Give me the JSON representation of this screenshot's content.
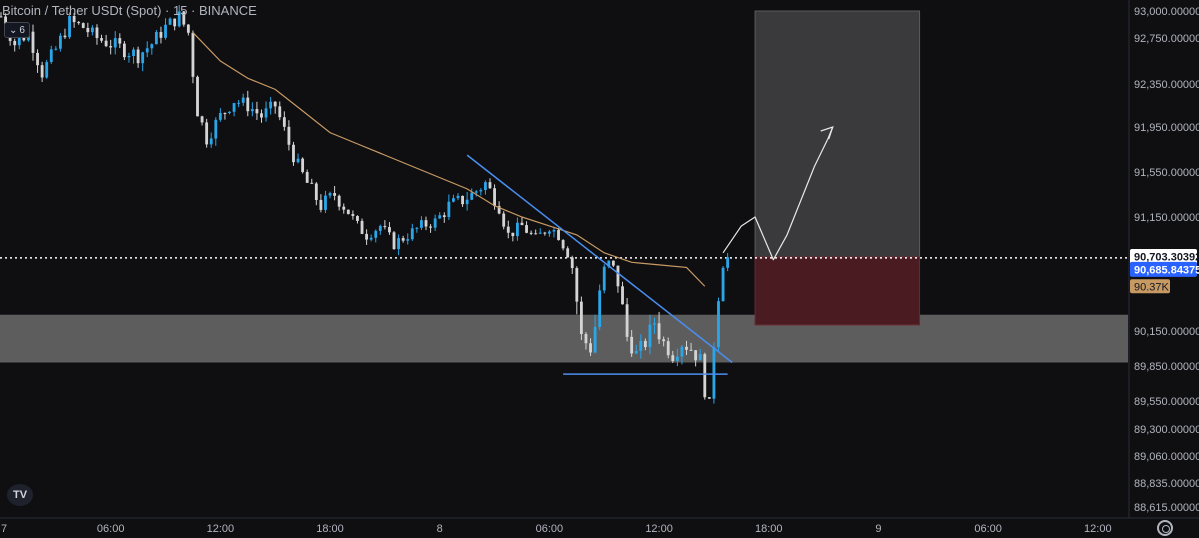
{
  "header": {
    "title": "Bitcoin / Tether USDt (Spot) · 15 · BINANCE",
    "indicator_count": "6"
  },
  "price_labels": {
    "high_marker": "90,703.30392",
    "current_price": "90,685.84375",
    "ma_value": "90.37K"
  },
  "colors": {
    "background": "#0f0f12",
    "up_candle": "#2aa5e8",
    "down_candle": "#d4d4d4",
    "moving_average": "#c89a63",
    "trendline": "#4a8ef0",
    "support_zone": "#6b6b6b",
    "target_box": "#3a3a3c",
    "stop_box": "#4a1c22",
    "current_price_tag": "#2962ff",
    "axis_text": "#b2b5be"
  },
  "icons": {
    "logo": "tradingview-logo-icon",
    "settings": "gear-icon"
  },
  "chart_data": {
    "type": "candlestick",
    "title": "Bitcoin / Tether USDt (Spot) · 15 · BINANCE",
    "ylim": [
      88500,
      93100
    ],
    "y_ticks": [
      93000,
      92750,
      92350,
      91950,
      91550,
      91150,
      90703.30392,
      90450,
      90150,
      89850,
      89550,
      89300,
      89060,
      88835,
      88615
    ],
    "y_tick_labels": [
      "93,000.00000",
      "92,750.00000",
      "92,350.00000",
      "91,950.00000",
      "91,550.00000",
      "91,150.00000",
      "",
      "90,450.00000",
      "90,150.00000",
      "89,850.00000",
      "89,550.00000",
      "89,300.00000",
      "89,060.00000",
      "88,835.00000",
      "88,615.00000"
    ],
    "x_range_hours": [
      0,
      54
    ],
    "x_ticks": [
      {
        "label": "7",
        "h": 0
      },
      {
        "label": "06:00",
        "h": 6
      },
      {
        "label": "12:00",
        "h": 12
      },
      {
        "label": "18:00",
        "h": 18
      },
      {
        "label": "8",
        "h": 24
      },
      {
        "label": "06:00",
        "h": 30
      },
      {
        "label": "12:00",
        "h": 36
      },
      {
        "label": "18:00",
        "h": 42
      },
      {
        "label": "9",
        "h": 48
      },
      {
        "label": "06:00",
        "h": 54
      },
      {
        "label": "12:00",
        "h": 60
      }
    ],
    "candle_interval_hours": 0.25,
    "close_path": [
      [
        0,
        92950
      ],
      [
        0.75,
        92700
      ],
      [
        1.5,
        92800
      ],
      [
        2.25,
        92450
      ],
      [
        3,
        92650
      ],
      [
        3.75,
        92900
      ],
      [
        4.5,
        92850
      ],
      [
        5.25,
        92750
      ],
      [
        6,
        92700
      ],
      [
        6.75,
        92650
      ],
      [
        7.5,
        92600
      ],
      [
        8.25,
        92700
      ],
      [
        9,
        92850
      ],
      [
        9.75,
        92950
      ],
      [
        10.25,
        92800
      ],
      [
        10.75,
        92100
      ],
      [
        11.25,
        91850
      ],
      [
        12,
        92050
      ],
      [
        12.75,
        92200
      ],
      [
        13.5,
        92150
      ],
      [
        14.25,
        92050
      ],
      [
        15,
        92150
      ],
      [
        15.75,
        91800
      ],
      [
        16.25,
        91600
      ],
      [
        16.75,
        91450
      ],
      [
        17.5,
        91250
      ],
      [
        18.25,
        91350
      ],
      [
        19,
        91200
      ],
      [
        19.5,
        91050
      ],
      [
        20,
        90950
      ],
      [
        20.75,
        91050
      ],
      [
        21.5,
        90850
      ],
      [
        22.25,
        90950
      ],
      [
        23,
        91050
      ],
      [
        23.75,
        91100
      ],
      [
        24.5,
        91250
      ],
      [
        25.25,
        91300
      ],
      [
        25.75,
        91350
      ],
      [
        26.5,
        91450
      ],
      [
        27.25,
        91250
      ],
      [
        27.75,
        90950
      ],
      [
        28.5,
        91050
      ],
      [
        29.25,
        90900
      ],
      [
        30,
        91050
      ],
      [
        30.5,
        90950
      ],
      [
        31,
        90750
      ],
      [
        31.25,
        90500
      ],
      [
        31.75,
        90100
      ],
      [
        32.25,
        90000
      ],
      [
        32.75,
        90350
      ],
      [
        33.25,
        90600
      ],
      [
        33.75,
        90400
      ],
      [
        34.25,
        90100
      ],
      [
        34.75,
        89950
      ],
      [
        35.25,
        90050
      ],
      [
        35.75,
        90200
      ],
      [
        36.25,
        90050
      ],
      [
        36.75,
        89950
      ],
      [
        37.25,
        90050
      ],
      [
        37.75,
        90000
      ],
      [
        38.25,
        89900
      ],
      [
        38.5,
        89650
      ],
      [
        38.75,
        89500
      ],
      [
        39,
        90050
      ],
      [
        39.25,
        90350
      ],
      [
        39.5,
        90550
      ],
      [
        39.75,
        90690
      ]
    ],
    "moving_average": [
      [
        10.5,
        92800
      ],
      [
        12,
        92550
      ],
      [
        13.5,
        92400
      ],
      [
        15,
        92300
      ],
      [
        16.5,
        92100
      ],
      [
        18,
        91900
      ],
      [
        19.5,
        91800
      ],
      [
        21,
        91700
      ],
      [
        22.5,
        91600
      ],
      [
        24,
        91500
      ],
      [
        25.5,
        91400
      ],
      [
        27,
        91250
      ],
      [
        28.5,
        91150
      ],
      [
        30,
        91050
      ],
      [
        31.5,
        90950
      ],
      [
        33,
        90750
      ],
      [
        34.5,
        90600
      ],
      [
        36,
        90550
      ],
      [
        37.5,
        90500
      ],
      [
        38.5,
        90370
      ]
    ],
    "annotations": {
      "support_zone": [
        89880,
        90230
      ],
      "descending_trendline": [
        [
          25.5,
          91700
        ],
        [
          40,
          89880
        ]
      ],
      "horizontal_support_line": {
        "y": 89780,
        "from_h": 30.75,
        "to_h": 39.75
      },
      "current_price_line": 90685.84375,
      "target_box": {
        "from_h": 41.25,
        "to_h": 50.25,
        "top": 93000,
        "bottom": 90703.30392
      },
      "stop_box": {
        "from_h": 41.25,
        "to_h": 50.25,
        "top": 90703.30392,
        "bottom": 90180
      },
      "projection_path": [
        [
          39.5,
          90750
        ],
        [
          40.5,
          91050
        ],
        [
          41.25,
          91150
        ],
        [
          42.25,
          90650
        ],
        [
          43,
          90950
        ],
        [
          44.5,
          91600
        ],
        [
          45.25,
          91850
        ],
        [
          45.5,
          91950
        ]
      ]
    }
  }
}
